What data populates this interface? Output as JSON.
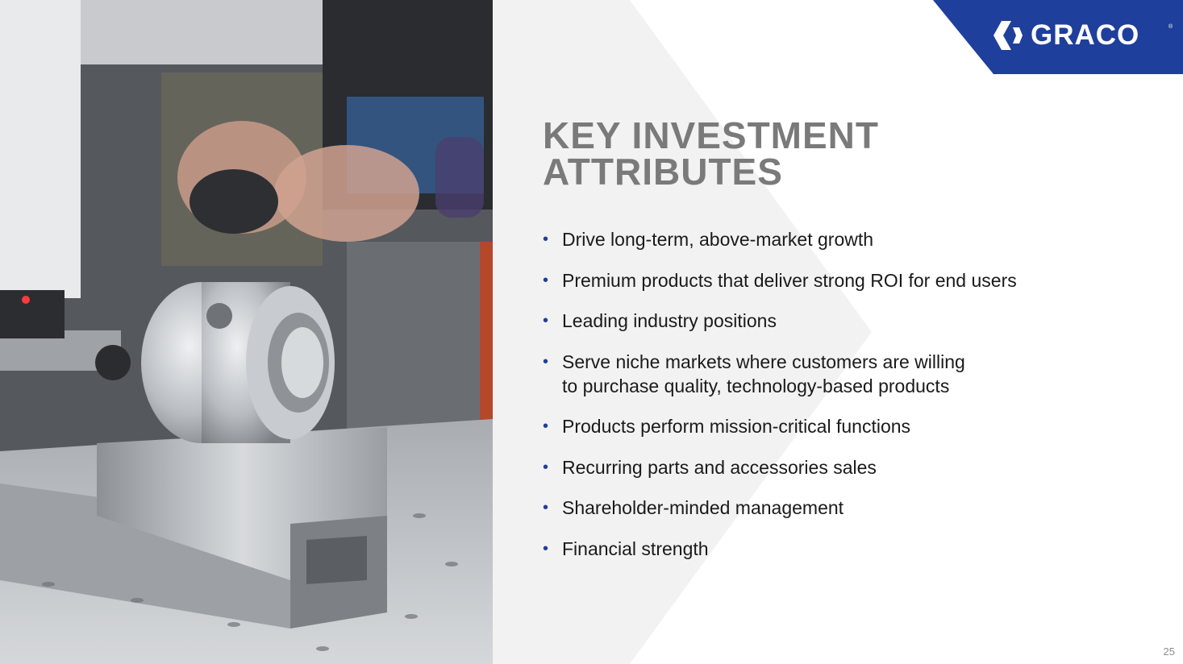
{
  "logo": {
    "text": "GRACO",
    "registered": "®",
    "band_color": "#1f3f9c"
  },
  "title": {
    "line1": "KEY INVESTMENT",
    "line2": "ATTRIBUTES",
    "color": "#7a7a7a"
  },
  "bullets": [
    {
      "lines": [
        "Drive long-term, above-market growth"
      ]
    },
    {
      "lines": [
        "Premium products that deliver strong ROI for end users"
      ]
    },
    {
      "lines": [
        "Leading industry positions"
      ]
    },
    {
      "lines": [
        "Serve niche markets where customers are willing",
        "to purchase quality, technology-based products"
      ]
    },
    {
      "lines": [
        "Products perform mission-critical functions"
      ]
    },
    {
      "lines": [
        "Recurring parts and accessories sales"
      ]
    },
    {
      "lines": [
        "Shareholder-minded management"
      ]
    },
    {
      "lines": [
        "Financial strength"
      ]
    }
  ],
  "bullet_symbol": "•",
  "page_number": "25"
}
